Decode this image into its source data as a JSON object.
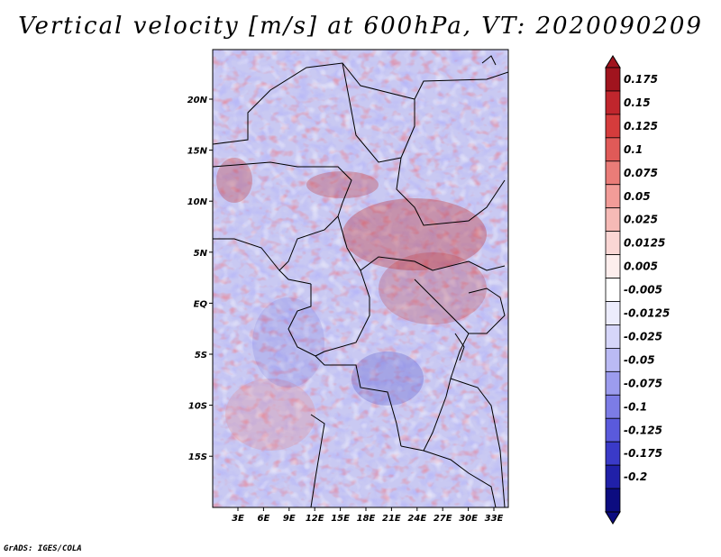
{
  "title": "Vertical velocity [m/s] at 600hPa, VT: 2020090209",
  "credit": "GrADS: IGES/COLA",
  "map": {
    "lat_labels": [
      "20N",
      "15N",
      "10N",
      "5N",
      "EQ",
      "5S",
      "10S",
      "15S"
    ],
    "lon_labels": [
      "3E",
      "6E",
      "9E",
      "12E",
      "15E",
      "18E",
      "21E",
      "24E",
      "27E",
      "30E",
      "33E"
    ]
  },
  "colorbar": {
    "labels": [
      "0.175",
      "0.15",
      "0.125",
      "0.1",
      "0.075",
      "0.05",
      "0.025",
      "0.0125",
      "0.005",
      "-0.005",
      "-0.0125",
      "-0.025",
      "-0.05",
      "-0.075",
      "-0.1",
      "-0.125",
      "-0.175",
      "-0.2"
    ],
    "colors": [
      "#a0141e",
      "#c0262d",
      "#d53c3c",
      "#e05a58",
      "#ea7c78",
      "#f29c98",
      "#f6bab6",
      "#fad6d4",
      "#fdeeed",
      "#ffffff",
      "#ececfc",
      "#d6d6fa",
      "#babaf4",
      "#9c9cee",
      "#7c7ce6",
      "#5a5adc",
      "#3a3ac8",
      "#2020a8",
      "#0c0c80"
    ],
    "top_color": "#a0141e",
    "bottom_color": "#0c0c80"
  }
}
